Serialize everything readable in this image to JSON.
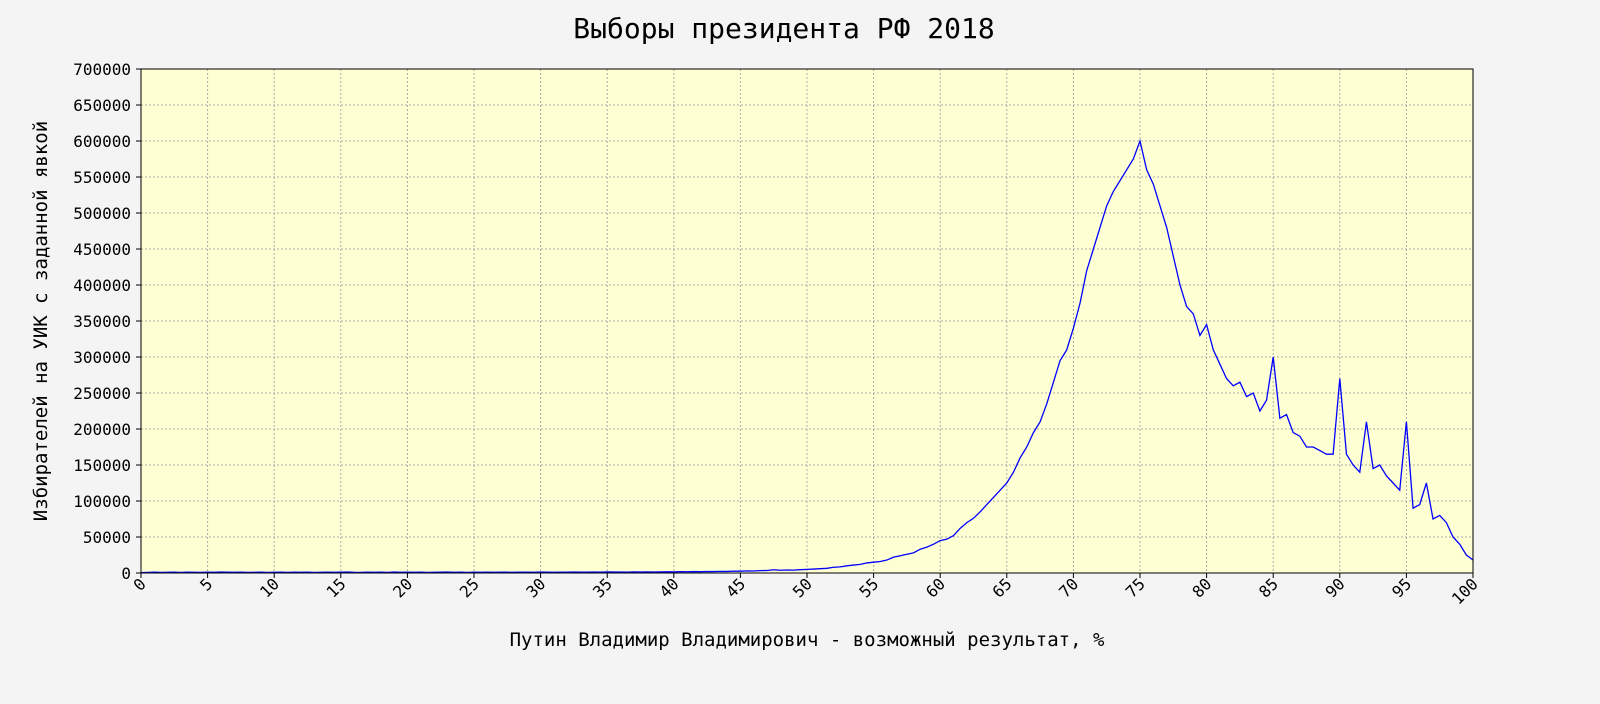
{
  "chart_data": {
    "type": "line",
    "title": "Выборы президента РФ 2018",
    "xlabel": "Путин Владимир Владимирович - возможный результат, %",
    "ylabel": "Избирателей на УИК с заданной явкой",
    "xlim": [
      0,
      100
    ],
    "ylim": [
      0,
      700000
    ],
    "xticks": [
      0,
      5,
      10,
      15,
      20,
      25,
      30,
      35,
      40,
      45,
      50,
      55,
      60,
      65,
      70,
      75,
      80,
      85,
      90,
      95,
      100
    ],
    "yticks": [
      0,
      50000,
      100000,
      150000,
      200000,
      250000,
      300000,
      350000,
      400000,
      450000,
      500000,
      550000,
      600000,
      650000,
      700000
    ],
    "grid": true,
    "x": [
      0,
      0.5,
      1,
      1.5,
      2,
      2.5,
      3,
      3.5,
      4,
      4.5,
      5,
      5.5,
      6,
      6.5,
      7,
      7.5,
      8,
      8.5,
      9,
      9.5,
      10,
      10.5,
      11,
      11.5,
      12,
      12.5,
      13,
      13.5,
      14,
      14.5,
      15,
      15.5,
      16,
      16.5,
      17,
      17.5,
      18,
      18.5,
      19,
      19.5,
      20,
      20.5,
      21,
      21.5,
      22,
      22.5,
      23,
      23.5,
      24,
      24.5,
      25,
      25.5,
      26,
      26.5,
      27,
      27.5,
      28,
      28.5,
      29,
      29.5,
      30,
      30.5,
      31,
      31.5,
      32,
      32.5,
      33,
      33.5,
      34,
      34.5,
      35,
      35.5,
      36,
      36.5,
      37,
      37.5,
      38,
      38.5,
      39,
      39.5,
      40,
      40.5,
      41,
      41.5,
      42,
      42.5,
      43,
      43.5,
      44,
      44.5,
      45,
      45.5,
      46,
      46.5,
      47,
      47.5,
      48,
      48.5,
      49,
      49.5,
      50,
      50.5,
      51,
      51.5,
      52,
      52.5,
      53,
      53.5,
      54,
      54.5,
      55,
      55.5,
      56,
      56.5,
      57,
      57.5,
      58,
      58.5,
      59,
      59.5,
      60,
      60.5,
      61,
      61.5,
      62,
      62.5,
      63,
      63.5,
      64,
      64.5,
      65,
      65.5,
      66,
      66.5,
      67,
      67.5,
      68,
      68.5,
      69,
      69.5,
      70,
      70.5,
      71,
      71.5,
      72,
      72.5,
      73,
      73.5,
      74,
      74.5,
      75,
      75.5,
      76,
      76.5,
      77,
      77.5,
      78,
      78.5,
      79,
      79.5,
      80,
      80.5,
      81,
      81.5,
      82,
      82.5,
      83,
      83.5,
      84,
      84.5,
      85,
      85.5,
      86,
      86.5,
      87,
      87.5,
      88,
      88.5,
      89,
      89.5,
      90,
      90.5,
      91,
      91.5,
      92,
      92.5,
      93,
      93.5,
      94,
      94.5,
      95,
      95.5,
      96,
      96.5,
      97,
      97.5,
      98,
      98.5,
      99,
      99.5,
      100
    ],
    "series": [
      {
        "color": "#0000ff",
        "values": [
          500,
          900,
          1100,
          800,
          1000,
          1200,
          900,
          1100,
          1000,
          800,
          1200,
          1000,
          1300,
          1100,
          1000,
          1200,
          900,
          1000,
          1100,
          800,
          1000,
          1100,
          900,
          1200,
          1000,
          1100,
          900,
          1000,
          1200,
          1000,
          1100,
          1300,
          1000,
          900,
          1100,
          1000,
          1200,
          900,
          1300,
          1000,
          1100,
          1000,
          1200,
          900,
          1000,
          1100,
          1300,
          1000,
          1100,
          900,
          1200,
          1000,
          1100,
          1000,
          1200,
          1100,
          1000,
          1200,
          1100,
          1000,
          1300,
          1100,
          1000,
          1200,
          1100,
          1300,
          1200,
          1100,
          1400,
          1200,
          1500,
          1300,
          1400,
          1200,
          1500,
          1300,
          1600,
          1400,
          1500,
          1700,
          1600,
          1800,
          1700,
          2000,
          1800,
          2100,
          2000,
          2300,
          2200,
          2600,
          2500,
          3000,
          2800,
          3300,
          3500,
          4500,
          3800,
          4200,
          4000,
          4600,
          5000,
          5500,
          6000,
          6500,
          8000,
          8500,
          10000,
          11000,
          12000,
          14000,
          15000,
          16000,
          18000,
          22000,
          24000,
          26000,
          28000,
          33000,
          36000,
          40000,
          45000,
          47000,
          52000,
          62000,
          70000,
          76000,
          85000,
          95000,
          105000,
          115000,
          125000,
          140000,
          160000,
          175000,
          195000,
          210000,
          235000,
          265000,
          295000,
          310000,
          340000,
          375000,
          420000,
          450000,
          480000,
          510000,
          530000,
          545000,
          560000,
          575000,
          600000,
          560000,
          540000,
          510000,
          480000,
          440000,
          400000,
          370000,
          360000,
          330000,
          345000,
          310000,
          290000,
          270000,
          260000,
          265000,
          245000,
          250000,
          225000,
          240000,
          300000,
          215000,
          220000,
          195000,
          190000,
          175000,
          175000,
          170000,
          165000,
          165000,
          270000,
          165000,
          150000,
          140000,
          210000,
          145000,
          150000,
          135000,
          125000,
          115000,
          210000,
          90000,
          95000,
          125000,
          75000,
          80000,
          70000,
          50000,
          40000,
          25000,
          18000
        ]
      }
    ]
  }
}
